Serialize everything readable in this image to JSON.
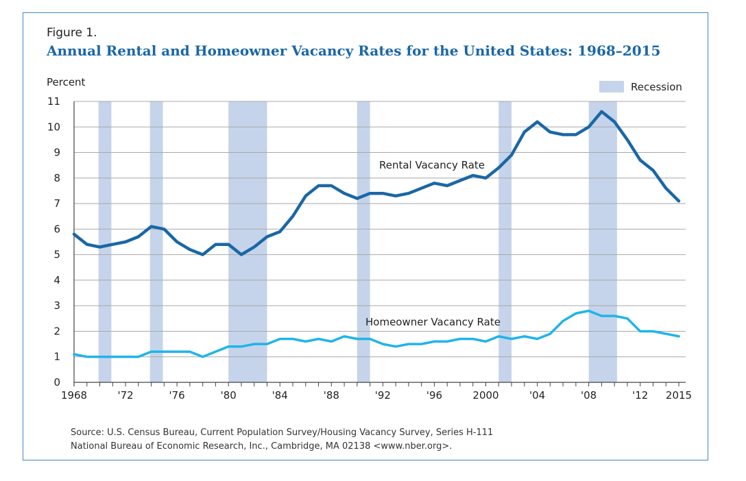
{
  "figure": {
    "label": "Figure 1.",
    "title": "Annual Rental and Homeowner Vacancy Rates for the United States: 1968–2015",
    "source_line1": "Source: U.S. Census Bureau, Current Population Survey/Housing Vacancy Survey, Series H-111",
    "source_line2": "National Bureau of Economic Research, Inc., Cambridge, MA 02138 <www.nber.org>."
  },
  "colors": {
    "rental": "#1a67a6",
    "homeowner": "#1fb4ea",
    "recession": "#c5d4ea",
    "grid": "#a8a8a8",
    "frame": "#3f86bd"
  },
  "chart_data": {
    "type": "line",
    "ylabel": "Percent",
    "xlabel": "",
    "ylim": [
      0,
      11
    ],
    "xlim": [
      1968,
      2015
    ],
    "yticks": [
      0,
      1,
      2,
      3,
      4,
      5,
      6,
      7,
      8,
      9,
      10,
      11
    ],
    "xticks": [
      {
        "value": 1968,
        "label": "1968"
      },
      {
        "value": 1972,
        "label": "'72"
      },
      {
        "value": 1976,
        "label": "'76"
      },
      {
        "value": 1980,
        "label": "'80"
      },
      {
        "value": 1984,
        "label": "'84"
      },
      {
        "value": 1988,
        "label": "'88"
      },
      {
        "value": 1992,
        "label": "'92"
      },
      {
        "value": 1996,
        "label": "'96"
      },
      {
        "value": 2000,
        "label": "2000"
      },
      {
        "value": 2004,
        "label": "'04"
      },
      {
        "value": 2008,
        "label": "'08"
      },
      {
        "value": 2012,
        "label": "'12"
      },
      {
        "value": 2015,
        "label": "2015"
      }
    ],
    "grid": true,
    "legend": {
      "label": "Recession",
      "position": "top-right"
    },
    "recessions": [
      [
        1969.9,
        1970.9
      ],
      [
        1973.9,
        1974.9
      ],
      [
        1980.0,
        1983.0
      ],
      [
        1990.0,
        1991.0
      ],
      [
        2001.0,
        2002.0
      ],
      [
        2008.0,
        2010.2
      ]
    ],
    "x": [
      1968,
      1969,
      1970,
      1971,
      1972,
      1973,
      1974,
      1975,
      1976,
      1977,
      1978,
      1979,
      1980,
      1981,
      1982,
      1983,
      1984,
      1985,
      1986,
      1987,
      1988,
      1989,
      1990,
      1991,
      1992,
      1993,
      1994,
      1995,
      1996,
      1997,
      1998,
      1999,
      2000,
      2001,
      2002,
      2003,
      2004,
      2005,
      2006,
      2007,
      2008,
      2009,
      2010,
      2011,
      2012,
      2013,
      2014,
      2015
    ],
    "series": [
      {
        "name": "Rental Vacancy Rate",
        "values": [
          5.8,
          5.4,
          5.3,
          5.4,
          5.5,
          5.7,
          6.1,
          6.0,
          5.5,
          5.2,
          5.0,
          5.4,
          5.4,
          5.0,
          5.3,
          5.7,
          5.9,
          6.5,
          7.3,
          7.7,
          7.7,
          7.4,
          7.2,
          7.4,
          7.4,
          7.3,
          7.4,
          7.6,
          7.8,
          7.7,
          7.9,
          8.1,
          8.0,
          8.4,
          8.9,
          9.8,
          10.2,
          9.8,
          9.7,
          9.7,
          10.0,
          10.6,
          10.2,
          9.5,
          8.7,
          8.3,
          7.6,
          7.1
        ]
      },
      {
        "name": "Homeowner Vacancy Rate",
        "values": [
          1.1,
          1.0,
          1.0,
          1.0,
          1.0,
          1.0,
          1.2,
          1.2,
          1.2,
          1.2,
          1.0,
          1.2,
          1.4,
          1.4,
          1.5,
          1.5,
          1.7,
          1.7,
          1.6,
          1.7,
          1.6,
          1.8,
          1.7,
          1.7,
          1.5,
          1.4,
          1.5,
          1.5,
          1.6,
          1.6,
          1.7,
          1.7,
          1.6,
          1.8,
          1.7,
          1.8,
          1.7,
          1.9,
          2.4,
          2.7,
          2.8,
          2.6,
          2.6,
          2.5,
          2.0,
          2.0,
          1.9,
          1.8
        ]
      }
    ]
  }
}
